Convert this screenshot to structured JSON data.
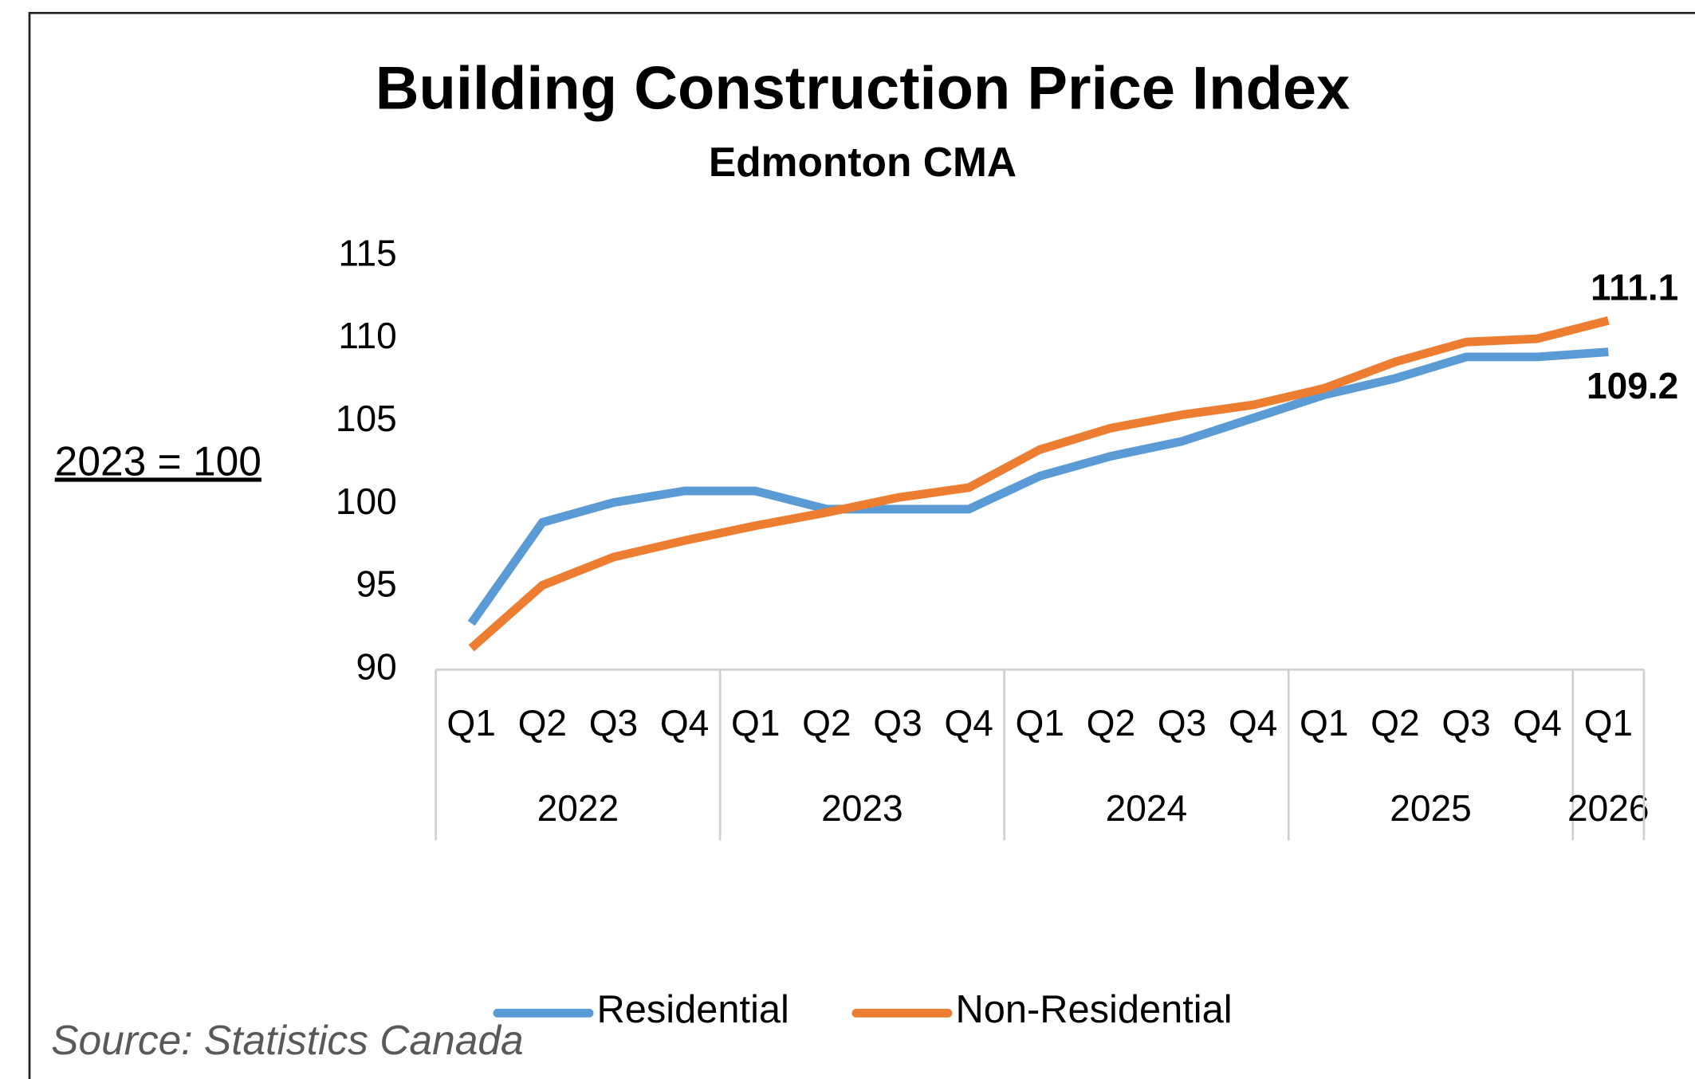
{
  "chart_data": {
    "type": "line",
    "title": "Building Construction Price Index",
    "subtitle": "Edmonton CMA",
    "y_annotation": "2023 = 100",
    "source": "Source: Statistics Canada",
    "year_groups": [
      {
        "label": "2022",
        "quarters": [
          "Q1",
          "Q2",
          "Q3",
          "Q4"
        ]
      },
      {
        "label": "2023",
        "quarters": [
          "Q1",
          "Q2",
          "Q3",
          "Q4"
        ]
      },
      {
        "label": "2024",
        "quarters": [
          "Q1",
          "Q2",
          "Q3",
          "Q4"
        ]
      },
      {
        "label": "2025",
        "quarters": [
          "Q1",
          "Q2",
          "Q3",
          "Q4"
        ]
      },
      {
        "label": "2026",
        "quarters": [
          "Q1"
        ]
      }
    ],
    "series": [
      {
        "name": "Residential",
        "color": "#5b9bd5",
        "values": [
          92.8,
          98.9,
          100.1,
          100.8,
          100.8,
          99.7,
          99.7,
          99.7,
          101.7,
          102.9,
          103.8,
          105.2,
          106.6,
          107.6,
          108.9,
          108.9,
          109.2
        ]
      },
      {
        "name": "Non-Residential",
        "color": "#ed7d31",
        "values": [
          91.3,
          95.1,
          96.8,
          97.8,
          98.7,
          99.5,
          100.4,
          101.0,
          103.3,
          104.6,
          105.4,
          106.0,
          107.0,
          108.6,
          109.8,
          110.0,
          111.1
        ]
      }
    ],
    "data_labels": "last",
    "ylim": [
      90,
      115
    ],
    "yticks": [
      90,
      95,
      100,
      105,
      110,
      115
    ],
    "grid": false,
    "legend": "bottom"
  }
}
